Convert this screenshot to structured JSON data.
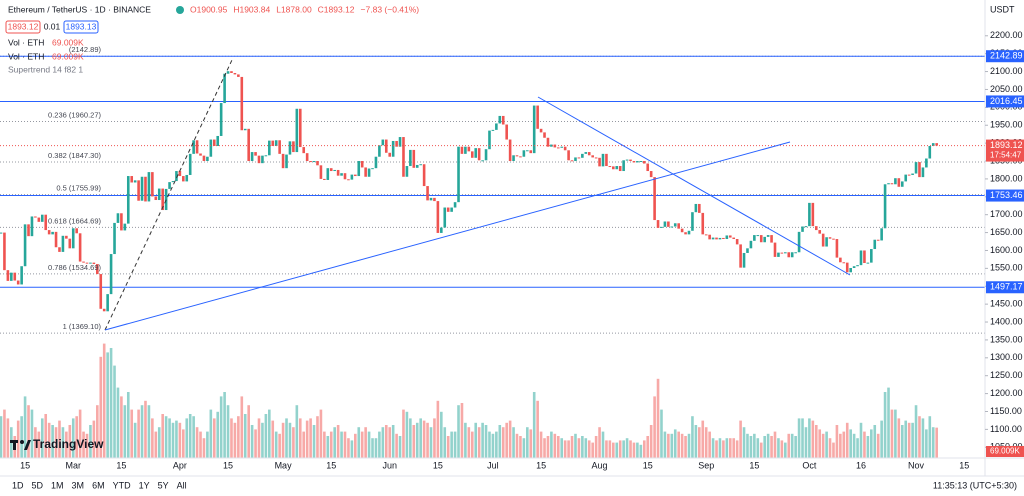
{
  "header": {
    "symbol": "Ethereum / TetherUS · 1D · BINANCE",
    "ohlc": [
      "O1900.95",
      "H1903.84",
      "L1878.00",
      "C1893.12",
      "−7.83 (−0.41%)"
    ],
    "bid": "1893.12",
    "spread": "0.01",
    "ask": "1893.13",
    "indicators": [
      "Vol · ETH",
      "Vol · ETH",
      "Supertrend 14 f82 1"
    ],
    "indicator_values": [
      "69.009K",
      "69.009K"
    ]
  },
  "chart_data": {
    "type": "candlestick",
    "currency": "USDT",
    "categories": [
      null,
      null,
      null,
      null,
      null,
      null,
      null,
      "15",
      null,
      null,
      null,
      null,
      null,
      null,
      null,
      null,
      null,
      null,
      null,
      null,
      null,
      "Mar",
      null,
      null,
      null,
      null,
      null,
      null,
      null,
      null,
      null,
      null,
      null,
      null,
      null,
      "15",
      null,
      null,
      null,
      null,
      null,
      null,
      null,
      null,
      null,
      null,
      null,
      null,
      null,
      null,
      null,
      null,
      "Apr",
      null,
      null,
      null,
      null,
      null,
      null,
      null,
      null,
      null,
      null,
      null,
      null,
      null,
      "15",
      null,
      null,
      null,
      null,
      null,
      null,
      null,
      null,
      null,
      null,
      null,
      null,
      null,
      null,
      null,
      "May",
      null,
      null,
      null,
      null,
      null,
      null,
      null,
      null,
      null,
      null,
      null,
      null,
      null,
      "15",
      null,
      null,
      null,
      null,
      null,
      null,
      null,
      null,
      null,
      null,
      null,
      null,
      null,
      null,
      null,
      null,
      "Jun",
      null,
      null,
      null,
      null,
      null,
      null,
      null,
      null,
      null,
      null,
      null,
      null,
      null,
      "15",
      null,
      null,
      null,
      null,
      null,
      null,
      null,
      null,
      null,
      null,
      null,
      null,
      null,
      null,
      null,
      "Jul",
      null,
      null,
      null,
      null,
      null,
      null,
      null,
      null,
      null,
      null,
      null,
      null,
      null,
      "15",
      null,
      null,
      null,
      null,
      null,
      null,
      null,
      null,
      null,
      null,
      null,
      null,
      null,
      null,
      null,
      null,
      "Aug",
      null,
      null,
      null,
      null,
      null,
      null,
      null,
      null,
      null,
      null,
      null,
      null,
      null,
      "15",
      null,
      null,
      null,
      null,
      null,
      null,
      null,
      null,
      null,
      null,
      null,
      null,
      null,
      null,
      null,
      null,
      "Sep",
      null,
      null,
      null,
      null,
      null,
      null,
      null,
      null,
      null,
      null,
      null,
      null,
      null,
      "15",
      null,
      null,
      null,
      null,
      null,
      null,
      null,
      null,
      null,
      null,
      null,
      null,
      null,
      null,
      null,
      "Oct",
      null,
      null,
      null,
      null,
      null,
      null,
      null,
      null,
      null,
      null,
      null,
      null,
      null,
      null,
      "16",
      null,
      null,
      null,
      null,
      null,
      null,
      null,
      null,
      null,
      null,
      null,
      null,
      null,
      null,
      null,
      "Nov",
      null,
      null,
      null,
      null,
      null,
      null,
      null,
      null,
      null,
      null,
      null,
      null,
      null,
      "15"
    ],
    "values": [
      1650,
      1545,
      1515,
      1538,
      1516,
      1505,
      1556,
      1673,
      1640,
      1695,
      1692,
      1680,
      1700,
      1657,
      1645,
      1652,
      1609,
      1596,
      1641,
      1633,
      1606,
      1662,
      1648,
      1569,
      1566,
      1564,
      1566,
      1562,
      1534,
      1437,
      1430,
      1478,
      1590,
      1677,
      1704,
      1656,
      1675,
      1808,
      1790,
      1796,
      1739,
      1806,
      1737,
      1819,
      1751,
      1741,
      1773,
      1713,
      1772,
      1791,
      1794,
      1822,
      1808,
      1793,
      1811,
      1870,
      1908,
      1871,
      1865,
      1850,
      1862,
      1910,
      1892,
      1920,
      2012,
      2094,
      2101,
      2096,
      2092,
      2085,
      1936,
      1940,
      1850,
      1875,
      1865,
      1844,
      1865,
      1866,
      1907,
      1892,
      1908,
      1870,
      1830,
      1868,
      1905,
      1875,
      1996,
      1889,
      1872,
      1850,
      1847,
      1850,
      1838,
      1800,
      1797,
      1830,
      1822,
      1825,
      1809,
      1816,
      1799,
      1798,
      1812,
      1808,
      1850,
      1832,
      1806,
      1829,
      1830,
      1862,
      1894,
      1910,
      1873,
      1862,
      1906,
      1890,
      1917,
      1806,
      1836,
      1881,
      1831,
      1839,
      1841,
      1780,
      1740,
      1747,
      1738,
      1649,
      1664,
      1720,
      1708,
      1720,
      1735,
      1890,
      1870,
      1890,
      1877,
      1859,
      1886,
      1852,
      1852,
      1883,
      1935,
      1937,
      1955,
      1976,
      1952,
      1910,
      1850,
      1866,
      1863,
      1862,
      1880,
      1880,
      1872,
      2005,
      1940,
      1930,
      1915,
      1890,
      1896,
      1888,
      1887,
      1890,
      1880,
      1852,
      1850,
      1860,
      1859,
      1870,
      1875,
      1866,
      1860,
      1859,
      1835,
      1870,
      1836,
      1835,
      1827,
      1836,
      1822,
      1852,
      1854,
      1850,
      1846,
      1850,
      1850,
      1843,
      1822,
      1805,
      1685,
      1663,
      1666,
      1681,
      1666,
      1667,
      1676,
      1661,
      1651,
      1645,
      1655,
      1707,
      1730,
      1705,
      1645,
      1644,
      1631,
      1636,
      1631,
      1635,
      1632,
      1642,
      1636,
      1632,
      1617,
      1552,
      1593,
      1606,
      1627,
      1643,
      1643,
      1623,
      1638,
      1643,
      1622,
      1582,
      1594,
      1592,
      1595,
      1581,
      1595,
      1595,
      1652,
      1667,
      1668,
      1733,
      1668,
      1657,
      1647,
      1611,
      1637,
      1633,
      1632,
      1580,
      1567,
      1566,
      1539,
      1551,
      1556,
      1559,
      1600,
      1565,
      1566,
      1604,
      1630,
      1628,
      1662,
      1785,
      1788,
      1785,
      1802,
      1778,
      1793,
      1812,
      1811,
      1815,
      1847,
      1805,
      1832,
      1857,
      1892,
      1900,
      1893,
      null,
      null,
      null,
      null,
      null,
      null,
      null,
      null
    ],
    "volume": [
      95,
      110,
      90,
      70,
      50,
      85,
      95,
      140,
      120,
      110,
      70,
      60,
      90,
      100,
      80,
      75,
      70,
      85,
      70,
      60,
      75,
      90,
      95,
      110,
      60,
      55,
      75,
      85,
      120,
      230,
      260,
      240,
      250,
      210,
      160,
      140,
      120,
      150,
      110,
      80,
      110,
      120,
      130,
      120,
      90,
      60,
      70,
      100,
      95,
      90,
      80,
      85,
      80,
      65,
      90,
      100,
      95,
      70,
      60,
      45,
      60,
      110,
      90,
      105,
      140,
      150,
      120,
      90,
      80,
      95,
      140,
      100,
      120,
      75,
      65,
      90,
      80,
      100,
      110,
      85,
      60,
      55,
      80,
      90,
      80,
      70,
      120,
      90,
      60,
      85,
      90,
      75,
      95,
      110,
      60,
      50,
      60,
      70,
      75,
      60,
      60,
      45,
      40,
      55,
      70,
      60,
      70,
      60,
      45,
      45,
      60,
      70,
      75,
      70,
      75,
      55,
      50,
      110,
      105,
      90,
      75,
      80,
      90,
      85,
      80,
      70,
      90,
      130,
      105,
      70,
      50,
      60,
      60,
      120,
      125,
      80,
      70,
      60,
      80,
      70,
      80,
      75,
      60,
      55,
      60,
      75,
      70,
      80,
      85,
      70,
      55,
      50,
      45,
      70,
      65,
      150,
      130,
      60,
      45,
      50,
      60,
      55,
      50,
      45,
      40,
      40,
      50,
      55,
      45,
      50,
      45,
      40,
      35,
      50,
      70,
      60,
      40,
      40,
      35,
      35,
      40,
      40,
      45,
      40,
      35,
      35,
      30,
      40,
      50,
      75,
      140,
      180,
      110,
      60,
      55,
      55,
      65,
      60,
      55,
      50,
      55,
      95,
      75,
      70,
      85,
      70,
      60,
      45,
      40,
      45,
      40,
      45,
      45,
      45,
      40,
      85,
      70,
      55,
      50,
      55,
      45,
      35,
      50,
      55,
      50,
      60,
      45,
      40,
      35,
      55,
      55,
      50,
      90,
      90,
      70,
      90,
      85,
      75,
      65,
      55,
      60,
      45,
      35,
      75,
      55,
      60,
      80,
      65,
      55,
      45,
      80,
      60,
      50,
      65,
      75,
      55,
      85,
      150,
      160,
      110,
      110,
      90,
      75,
      85,
      80,
      80,
      120,
      95,
      90,
      65,
      95,
      70,
      69.009,
      null,
      null,
      null,
      null,
      null,
      null,
      null,
      null
    ],
    "volume_label": "69.009K",
    "ylim": [
      1020,
      2300
    ],
    "yticks": [
      {
        "value": 2200,
        "label": "2200.00"
      },
      {
        "value": 2150,
        "label": "2150.00"
      },
      {
        "value": 2100,
        "label": "2100.00"
      },
      {
        "value": 2050,
        "label": "2050.00"
      },
      {
        "value": 2000,
        "label": "2000.00"
      },
      {
        "value": 1950,
        "label": "1950.00"
      },
      {
        "value": 1900,
        "label": "1900.00"
      },
      {
        "value": 1850,
        "label": "1850.00"
      },
      {
        "value": 1800,
        "label": "1800.00"
      },
      {
        "value": 1750,
        "label": "1750.00"
      },
      {
        "value": 1700,
        "label": "1700.00"
      },
      {
        "value": 1650,
        "label": "1650.00"
      },
      {
        "value": 1600,
        "label": "1600.00"
      },
      {
        "value": 1550,
        "label": "1550.00"
      },
      {
        "value": 1500,
        "label": "1500.00"
      },
      {
        "value": 1450,
        "label": "1450.00"
      },
      {
        "value": 1400,
        "label": "1400.00"
      },
      {
        "value": 1350,
        "label": "1350.00"
      },
      {
        "value": 1300,
        "label": "1300.00"
      },
      {
        "value": 1250,
        "label": "1250.00"
      },
      {
        "value": 1200,
        "label": "1200.00"
      },
      {
        "value": 1150,
        "label": "1150.00"
      },
      {
        "value": 1100,
        "label": "1100.00"
      },
      {
        "value": 1050,
        "label": "1050.00"
      }
    ],
    "levels": [
      2142.89,
      2016.45,
      1753.46,
      1497.17
    ],
    "fib": [
      {
        "value": 2142.89,
        "label": "(2142.89)"
      },
      {
        "value": 1960.27,
        "label": "0.236 (1960.27)"
      },
      {
        "value": 1847.3,
        "label": "0.382 (1847.30)"
      },
      {
        "value": 1755.99,
        "label": "0.5 (1755.99)"
      },
      {
        "value": 1664.69,
        "label": "0.618 (1664.69)"
      },
      {
        "value": 1534.69,
        "label": "0.786 (1534.69)"
      },
      {
        "value": 1369.1,
        "label": "1 (1369.10)"
      }
    ],
    "last_price": 1893.12,
    "countdown": "17:54:47",
    "up_color": "#26a69a",
    "down_color": "#ef5350",
    "level_color": "#2962ff"
  },
  "footer": {
    "ranges": [
      "1D",
      "5D",
      "1M",
      "3M",
      "6M",
      "YTD",
      "1Y",
      "5Y",
      "All"
    ],
    "clock": "11:35:13 (UTC+5:30)",
    "brand": "TradingView"
  }
}
